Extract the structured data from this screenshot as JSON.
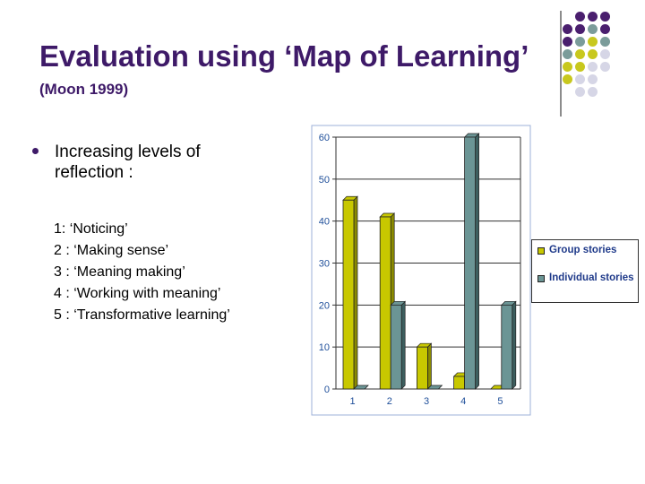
{
  "slide": {
    "title": "Evaluation using ‘Map of Learning’",
    "subtitle": "(Moon 1999)"
  },
  "bullets": {
    "main": "Increasing levels of reflection :",
    "levels": [
      {
        "num": "1:",
        "text": "‘Noticing’"
      },
      {
        "num": "2 :",
        "text": "‘Making sense’"
      },
      {
        "num": "3 :",
        "text": "‘Meaning making’"
      },
      {
        "num": "4 :",
        "text": "‘Working with meaning’"
      },
      {
        "num": "5 :",
        "text": "‘Transformative learning’"
      }
    ]
  },
  "colors": {
    "purple": "#4a1f6e",
    "teal": "#7b9c9a",
    "yellow": "#c8c81e",
    "lavender": "#d6d6e6",
    "series1": "#c8c800",
    "series2": "#6b9595",
    "axis_text": "#1f4f9a"
  },
  "chart_data": {
    "type": "bar",
    "categories": [
      "1",
      "2",
      "3",
      "4",
      "5"
    ],
    "series": [
      {
        "name": "Group stories",
        "values": [
          45,
          41,
          10,
          3,
          0
        ]
      },
      {
        "name": "Individual stories",
        "values": [
          0,
          20,
          0,
          60,
          20
        ]
      }
    ],
    "ylim": [
      0,
      60
    ],
    "yticks": [
      "0",
      "10",
      "20",
      "30",
      "40",
      "50",
      "60"
    ],
    "grid": true,
    "legend": "right"
  }
}
